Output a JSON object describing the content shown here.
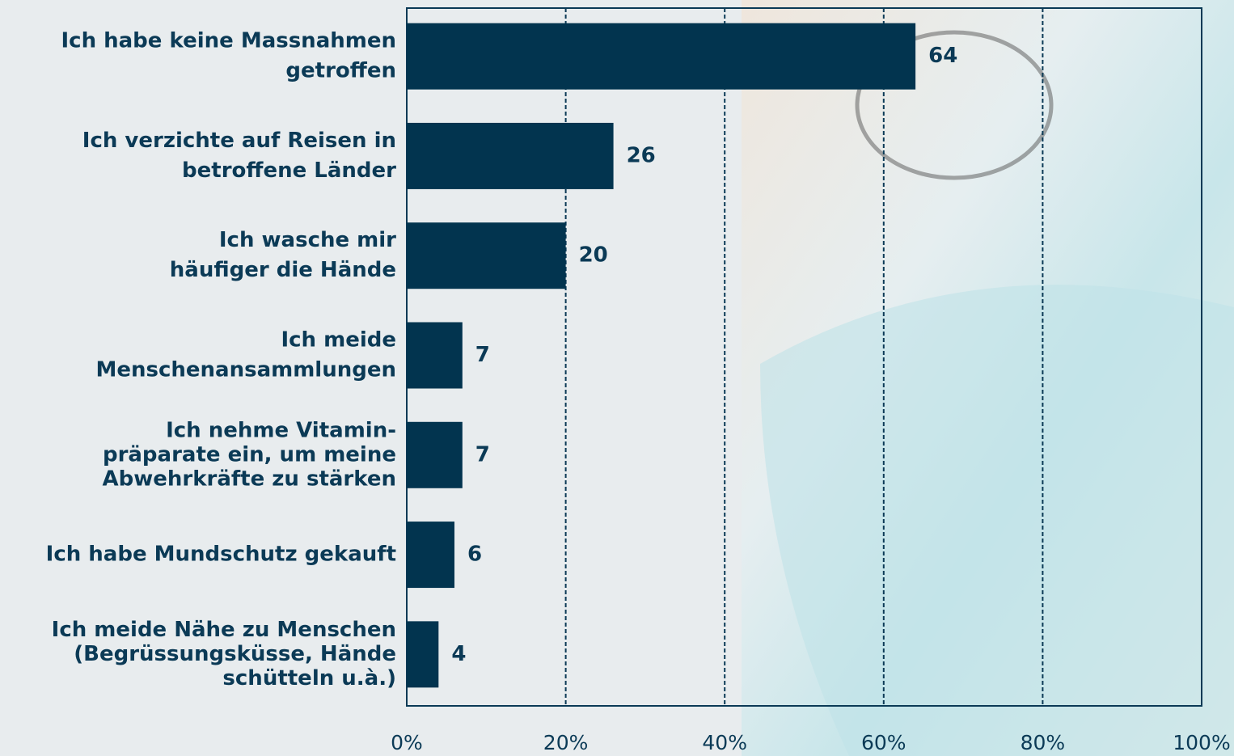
{
  "chart_data": {
    "type": "barh",
    "categories": [
      [
        "Ich habe keine Massnahmen",
        "getroffen"
      ],
      [
        "Ich verzichte auf Reisen in",
        "betroffene Länder"
      ],
      [
        "Ich wasche mir",
        "häufiger die Hände"
      ],
      [
        "Ich meide",
        "Menschenansammlungen"
      ],
      [
        "Ich nehme Vitamin-",
        "präparate ein, um meine",
        "Abwehrkräfte zu stärken"
      ],
      [
        "Ich habe Mundschutz gekauft"
      ],
      [
        "Ich meide Nähe zu Menschen",
        "(Begrüssungsküsse, Hände",
        "schütteln u.à.)"
      ]
    ],
    "values": [
      64,
      26,
      20,
      7,
      7,
      6,
      4
    ],
    "color": "#02344f",
    "xlim": [
      0,
      100
    ],
    "xticks": [
      {
        "value": 0,
        "label": "0%"
      },
      {
        "value": 20,
        "label": "20%"
      },
      {
        "value": 40,
        "label": "40%"
      },
      {
        "value": 60,
        "label": "60%"
      },
      {
        "value": 80,
        "label": "80%"
      },
      {
        "value": 100,
        "label": "100%"
      }
    ],
    "grid": true
  }
}
